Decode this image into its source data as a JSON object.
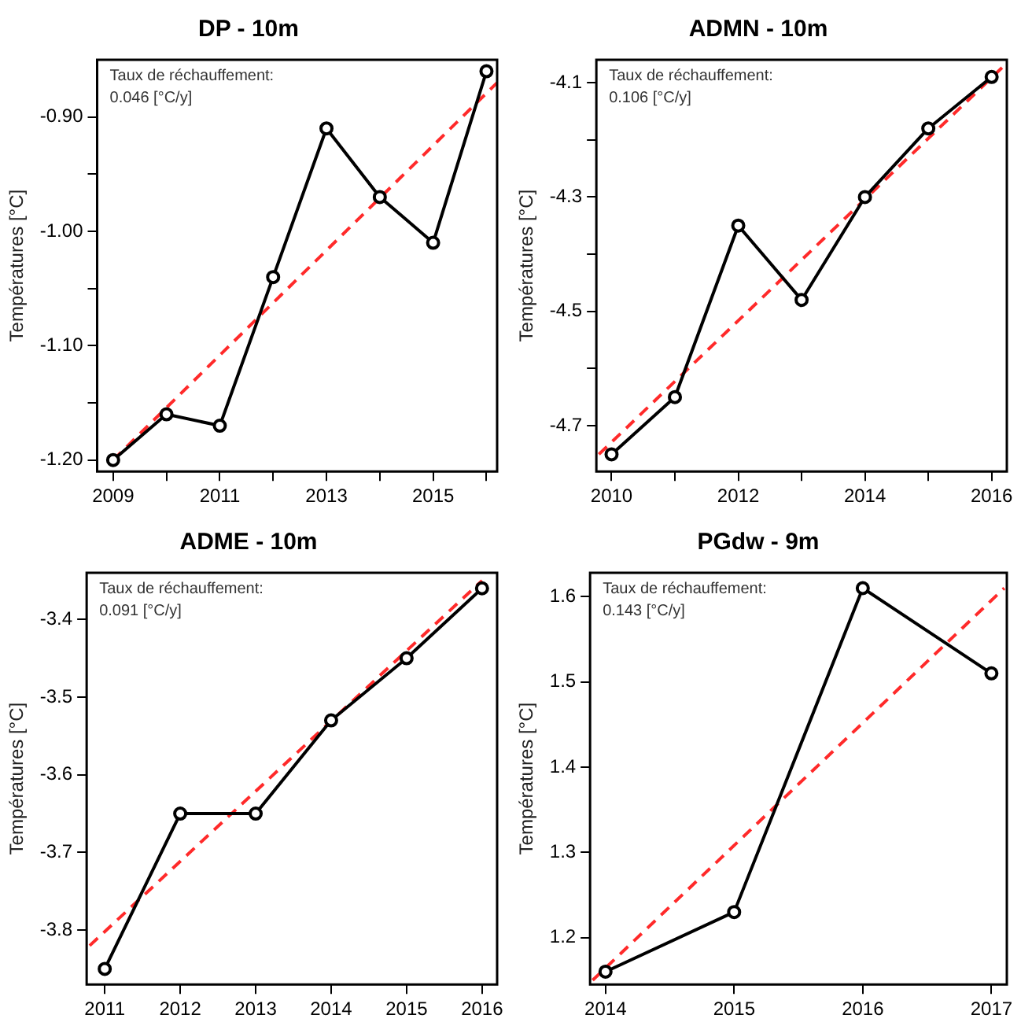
{
  "chart_data": [
    {
      "type": "line",
      "title": "DP - 10m",
      "ylabel": "Températures [°C]",
      "x": [
        2009,
        2010,
        2011,
        2012,
        2013,
        2014,
        2015,
        2016
      ],
      "series": [
        {
          "color": "#000000",
          "values": [
            -1.2,
            -1.16,
            -1.17,
            -1.04,
            -0.91,
            -0.97,
            -1.01,
            -0.86
          ],
          "marker": "circle",
          "line_style": "solid"
        },
        {
          "type": "line",
          "color": "#ff2a2a",
          "x": [
            2009,
            2016.2
          ],
          "values": [
            -1.2,
            -0.87
          ],
          "marker": "none",
          "line_style": "dashed"
        }
      ],
      "xlim": [
        2008.7,
        2016.2
      ],
      "ylim": [
        -1.21,
        -0.85
      ],
      "xticks": [
        2009,
        {
          "value": 2010,
          "label": null
        },
        2011,
        {
          "value": 2012,
          "label": null
        },
        2013,
        {
          "value": 2014,
          "label": null
        },
        2015,
        {
          "value": 2016,
          "label": null
        }
      ],
      "yticks": [
        {
          "value": -1.2,
          "label": "-1.20"
        },
        {
          "value": -1.15,
          "label": null
        },
        {
          "value": -1.1,
          "label": "-1.10"
        },
        {
          "value": -1.05,
          "label": null
        },
        {
          "value": -1,
          "label": "-1.00"
        },
        {
          "value": -0.95,
          "label": null
        },
        {
          "value": -0.9,
          "label": "-0.90"
        }
      ],
      "annotations": [
        "Taux de réchauffement:",
        "0.046 [°C/y]"
      ],
      "grid": false,
      "legend": false
    },
    {
      "type": "line",
      "title": "ADMN - 10m",
      "ylabel": "Températures [°C]",
      "x": [
        2010,
        2011,
        2012,
        2013,
        2014,
        2015,
        2016
      ],
      "series": [
        {
          "color": "#000000",
          "values": [
            -4.75,
            -4.65,
            -4.35,
            -4.48,
            -4.3,
            -4.18,
            -4.09
          ],
          "marker": "circle",
          "line_style": "solid"
        },
        {
          "type": "line",
          "color": "#ff2a2a",
          "x": [
            2009.8,
            2016.2
          ],
          "values": [
            -4.75,
            -4.07
          ],
          "marker": "none",
          "line_style": "dashed"
        }
      ],
      "xlim": [
        2009.76,
        2016.24
      ],
      "ylim": [
        -4.78,
        -4.06
      ],
      "xticks": [
        2010,
        {
          "value": 2011,
          "label": null
        },
        2012,
        {
          "value": 2013,
          "label": null
        },
        2014,
        {
          "value": 2015,
          "label": null
        },
        2016
      ],
      "yticks": [
        -4.7,
        {
          "value": -4.6,
          "label": null
        },
        -4.5,
        {
          "value": -4.4,
          "label": null
        },
        -4.3,
        {
          "value": -4.2,
          "label": null
        },
        -4.1
      ],
      "annotations": [
        "Taux de réchauffement:",
        "0.106 [°C/y]"
      ],
      "grid": false,
      "legend": false
    },
    {
      "type": "line",
      "title": "ADME - 10m",
      "ylabel": "Températures [°C]",
      "x": [
        2011,
        2012,
        2013,
        2014,
        2015,
        2016
      ],
      "series": [
        {
          "color": "#000000",
          "values": [
            -3.85,
            -3.65,
            -3.65,
            -3.53,
            -3.45,
            -3.36
          ],
          "marker": "circle",
          "line_style": "solid"
        },
        {
          "type": "line",
          "color": "#ff2a2a",
          "x": [
            2010.8,
            2016
          ],
          "values": [
            -3.82,
            -3.35
          ],
          "marker": "none",
          "line_style": "dashed"
        }
      ],
      "xlim": [
        2010.76,
        2016.2
      ],
      "ylim": [
        -3.87,
        -3.34
      ],
      "xticks": [
        2011,
        2012,
        2013,
        2014,
        2015,
        2016
      ],
      "yticks": [
        -3.8,
        -3.7,
        -3.6,
        -3.5,
        -3.4
      ],
      "annotations": [
        "Taux de réchauffement:",
        "0.091 [°C/y]"
      ],
      "grid": false,
      "legend": false
    },
    {
      "type": "line",
      "title": "PGdw - 9m",
      "ylabel": "Températures [°C]",
      "x": [
        2014,
        2015,
        2016,
        2017
      ],
      "series": [
        {
          "color": "#000000",
          "values": [
            1.16,
            1.23,
            1.61,
            1.51
          ],
          "marker": "circle",
          "line_style": "solid"
        },
        {
          "type": "line",
          "color": "#ff2a2a",
          "x": [
            2013.9,
            2017.1
          ],
          "values": [
            1.15,
            1.61
          ],
          "marker": "none",
          "line_style": "dashed"
        }
      ],
      "xlim": [
        2013.88,
        2017.12
      ],
      "ylim": [
        1.145,
        1.628
      ],
      "xticks": [
        2014,
        2015,
        2016,
        2017
      ],
      "yticks": [
        1.2,
        1.3,
        1.4,
        1.5,
        1.6
      ],
      "annotations": [
        "Taux de réchauffement:",
        "0.143 [°C/y]"
      ],
      "grid": false,
      "legend": false
    }
  ]
}
